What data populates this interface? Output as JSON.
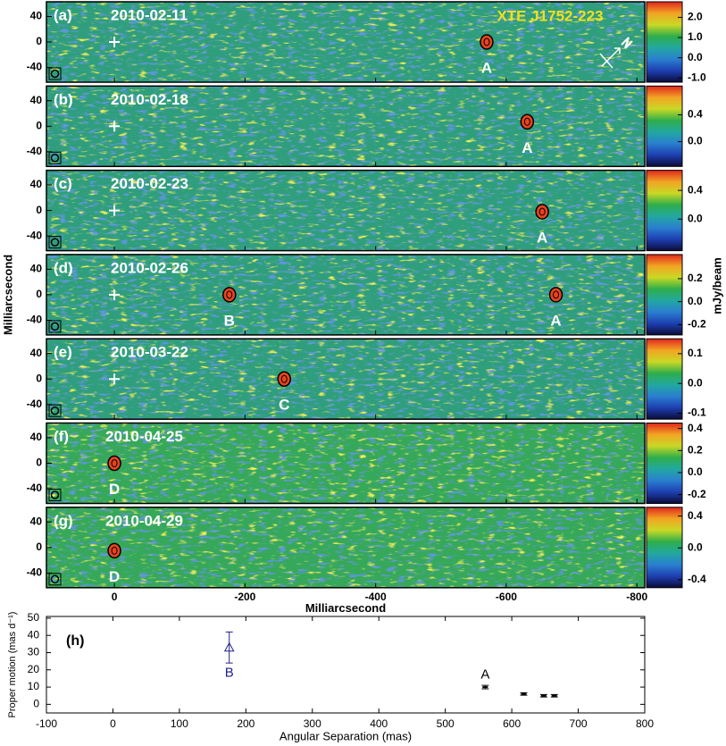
{
  "chart_data": [
    {
      "type": "image",
      "title": "XTE J1752-223",
      "xlabel": "Milliarcsecond",
      "ylabel": "Milliarcsecond",
      "colorbar_label": "mJy/beam",
      "xlim": [
        104,
        -812
      ],
      "xticks": [
        0,
        -200,
        -400,
        -600,
        -800
      ],
      "ylim": [
        -63,
        63
      ],
      "yticks": [
        40,
        0,
        -40
      ],
      "colorscale": [
        "#0b0b3a",
        "#1e3fb0",
        "#2a7fd0",
        "#22a8a0",
        "#2fae4a",
        "#c9d826",
        "#f2a423",
        "#e0261e"
      ],
      "panels": [
        {
          "label": "(a)",
          "date": "2010-02-11",
          "origin_cross": true,
          "zlim": [
            -1.21,
            2.77
          ],
          "zticks": [
            {
              "value": 2.0,
              "label": "2.0"
            },
            {
              "value": 1.0,
              "label": "1.0"
            },
            {
              "value": 0.0,
              "label": "0.0"
            },
            {
              "value": -1.0,
              "label": "-1.0"
            }
          ],
          "sources": [
            {
              "label": "A",
              "x": -570,
              "y": 0
            }
          ]
        },
        {
          "label": "(b)",
          "date": "2010-02-18",
          "origin_cross": true,
          "zlim": [
            -0.37,
            0.83
          ],
          "zticks": [
            {
              "value": 0.4,
              "label": "0.4"
            },
            {
              "value": 0.0,
              "label": "0.0"
            }
          ],
          "sources": [
            {
              "label": "A",
              "x": -632,
              "y": 7
            }
          ]
        },
        {
          "label": "(c)",
          "date": "2010-02-23",
          "origin_cross": true,
          "zlim": [
            -0.44,
            0.68
          ],
          "zticks": [
            {
              "value": 0.4,
              "label": "0.4"
            },
            {
              "value": 0.0,
              "label": "0.0"
            }
          ],
          "sources": [
            {
              "label": "A",
              "x": -655,
              "y": -2
            }
          ]
        },
        {
          "label": "(d)",
          "date": "2010-02-26",
          "origin_cross": true,
          "zlim": [
            -0.29,
            0.41
          ],
          "zticks": [
            {
              "value": 0.2,
              "label": "0.2"
            },
            {
              "value": 0.0,
              "label": "0.0"
            },
            {
              "value": -0.2,
              "label": "-0.2"
            }
          ],
          "sources": [
            {
              "label": "B",
              "x": -176,
              "y": 0
            },
            {
              "label": "A",
              "x": -676,
              "y": 0
            }
          ]
        },
        {
          "label": "(e)",
          "date": "2010-03-22",
          "origin_cross": true,
          "zlim": [
            -0.12,
            0.15
          ],
          "zticks": [
            {
              "value": 0.1,
              "label": "0.1"
            },
            {
              "value": 0.0,
              "label": "0.0"
            },
            {
              "value": -0.1,
              "label": "-0.1"
            }
          ],
          "sources": [
            {
              "label": "C",
              "x": -260,
              "y": 0
            }
          ]
        },
        {
          "label": "(f)",
          "date": "2010-04-25",
          "origin_cross": false,
          "zlim": [
            -0.28,
            0.45
          ],
          "zticks": [
            {
              "value": 0.4,
              "label": "0.4"
            },
            {
              "value": 0.2,
              "label": "0.2"
            },
            {
              "value": 0.0,
              "label": "0.0"
            },
            {
              "value": -0.2,
              "label": "-0.2"
            }
          ],
          "sources": [
            {
              "label": "D",
              "x": 0,
              "y": 0
            }
          ]
        },
        {
          "label": "(g)",
          "date": "2010-04-29",
          "origin_cross": false,
          "zlim": [
            -0.5,
            0.51
          ],
          "zticks": [
            {
              "value": 0.4,
              "label": "0.4"
            },
            {
              "value": 0.0,
              "label": "0.0"
            },
            {
              "value": -0.4,
              "label": "-0.4"
            }
          ],
          "sources": [
            {
              "label": "D",
              "x": 0,
              "y": -5
            }
          ]
        }
      ]
    },
    {
      "type": "scatter",
      "label": "(h)",
      "xlabel": "Angular Separation (mas)",
      "ylabel": "Proper motion (mas d⁻¹)",
      "xlim": [
        -100,
        800
      ],
      "xticks": [
        -100,
        0,
        100,
        200,
        300,
        400,
        500,
        600,
        700,
        800
      ],
      "ylim": [
        -5,
        51
      ],
      "yticks": [
        0,
        10,
        20,
        30,
        40,
        50
      ],
      "series": [
        {
          "color": "#22228a",
          "marker": "triangle",
          "x": [
            175
          ],
          "values": [
            33
          ],
          "errors": [
            9
          ]
        },
        {
          "color": "#000000",
          "marker": "dot",
          "x": [
            560,
            618,
            648,
            664
          ],
          "values": [
            10,
            6,
            5,
            5
          ],
          "errors": [
            1,
            0.7,
            0.7,
            0.7
          ]
        }
      ],
      "annotations": [
        {
          "text": "B",
          "x": 175,
          "y": 18,
          "color": "#22228a"
        },
        {
          "text": "A",
          "x": 560,
          "y": 17,
          "color": "#000000"
        }
      ]
    }
  ]
}
